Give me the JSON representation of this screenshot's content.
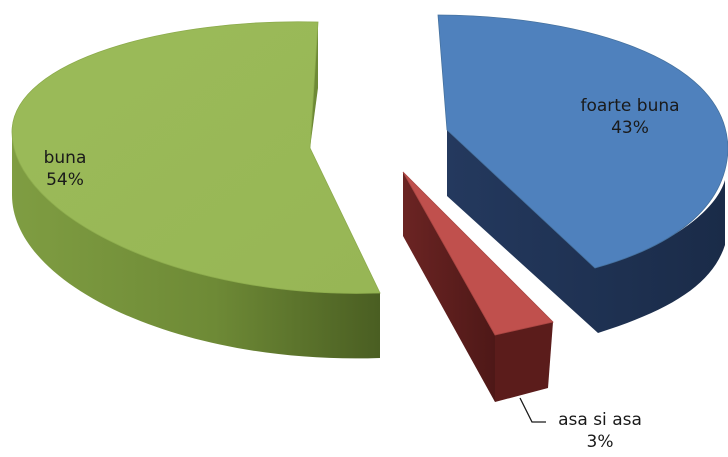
{
  "chart_data": {
    "type": "pie",
    "style": "3d-exploded",
    "categories": [
      "foarte buna",
      "asa si asa",
      "buna"
    ],
    "values": [
      43,
      3,
      54
    ],
    "units": "%",
    "data_labels": [
      {
        "name": "foarte buna",
        "value": "43%"
      },
      {
        "name": "asa si asa",
        "value": "3%"
      },
      {
        "name": "buna",
        "value": "54%"
      }
    ],
    "colors": {
      "foarte buna": "#4f81bd",
      "asa si asa": "#c0504d",
      "buna": "#9bbb59"
    },
    "legend": "none",
    "title": ""
  }
}
